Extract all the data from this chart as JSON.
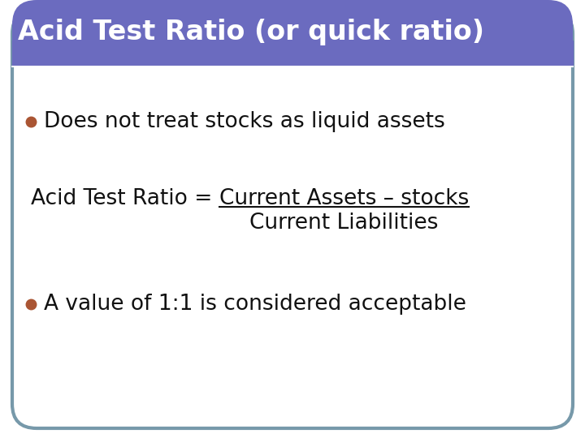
{
  "title": "Acid Test Ratio (or quick ratio)",
  "title_bg_color": "#6b6bbf",
  "title_text_color": "#ffffff",
  "slide_bg_color": "#ffffff",
  "border_color": "#7799aa",
  "bullet_color": "#aa5533",
  "bullet1": "Does not treat stocks as liquid assets",
  "formula_prefix": "Acid Test Ratio = ",
  "formula_numerator": "Current Assets – stocks",
  "formula_denominator": "Current Liabilities",
  "bullet2": "A value of 1:1 is considered acceptable",
  "text_color": "#111111",
  "title_fontsize": 24,
  "body_fontsize": 19,
  "formula_fontsize": 19
}
